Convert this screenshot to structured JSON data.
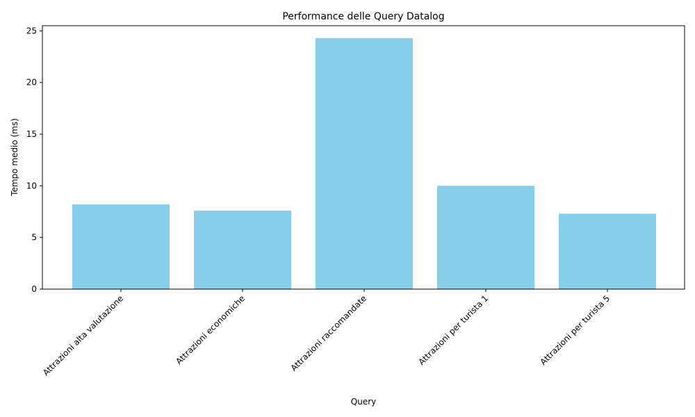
{
  "chart_data": {
    "type": "bar",
    "title": "Performance delle Query Datalog",
    "xlabel": "Query",
    "ylabel": "Tempo medio (ms)",
    "categories": [
      "Attrazioni alta valutazione",
      "Attrazioni economiche",
      "Attrazioni raccomandate",
      "Attrazioni per turista 1",
      "Attrazioni per turista 5"
    ],
    "values": [
      8.2,
      7.6,
      24.3,
      10.0,
      7.3
    ],
    "ylim": [
      0,
      25.5
    ],
    "yticks": [
      0,
      5,
      10,
      15,
      20,
      25
    ],
    "bar_color": "#87CEEB",
    "grid": false,
    "legend": "none"
  }
}
